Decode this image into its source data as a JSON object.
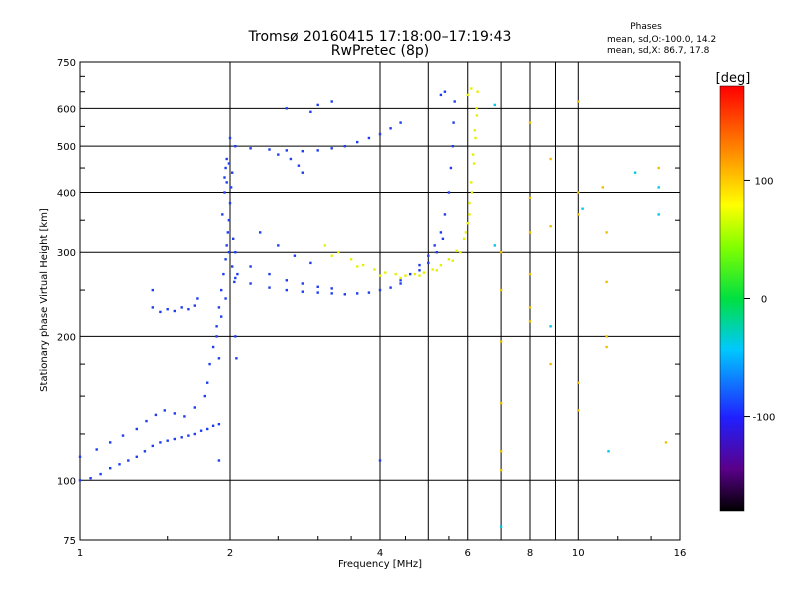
{
  "chart_data": {
    "type": "scatter",
    "title": "Tromsø 20160415 17:18:00–17:19:43",
    "subtitle": "RwPretec (8p)",
    "xlabel": "Frequency [MHz]",
    "ylabel": "Stationary phase Virtual Height [km]",
    "xscale": "log",
    "yscale": "log",
    "xlim": [
      1,
      16
    ],
    "ylim": [
      75,
      750
    ],
    "grid": true,
    "x_ticks": [
      1,
      2,
      4,
      6,
      8,
      10,
      16
    ],
    "x_tick_labels": [
      "1",
      "2",
      "4",
      "6",
      "8",
      "10",
      "16"
    ],
    "y_ticks": [
      75,
      100,
      200,
      300,
      400,
      500,
      600,
      750
    ],
    "y_tick_labels": [
      "75",
      "100",
      "200",
      "300",
      "400",
      "500",
      "600",
      "750"
    ],
    "stats": {
      "heading": "Phases",
      "line1": "mean, sd,O:-100.0, 14.2",
      "line2": "mean, sd,X:  86.7, 17.8"
    },
    "colorbar": {
      "label": "[deg]",
      "range": [
        -180,
        180
      ],
      "ticks": [
        100,
        0,
        -100
      ],
      "tick_labels": [
        "100",
        "0",
        "-100"
      ]
    },
    "series": [
      {
        "mode": "O",
        "phase_deg": -100,
        "color": "#1f3df0",
        "points": [
          [
            1.0,
            100
          ],
          [
            1.05,
            101
          ],
          [
            1.1,
            103
          ],
          [
            1.15,
            106
          ],
          [
            1.2,
            108
          ],
          [
            1.25,
            110
          ],
          [
            1.3,
            112
          ],
          [
            1.35,
            115
          ],
          [
            1.4,
            118
          ],
          [
            1.45,
            120
          ],
          [
            1.5,
            121
          ],
          [
            1.55,
            122
          ],
          [
            1.6,
            123
          ],
          [
            1.65,
            124
          ],
          [
            1.7,
            125
          ],
          [
            1.75,
            127
          ],
          [
            1.8,
            128
          ],
          [
            1.85,
            130
          ],
          [
            1.9,
            131
          ],
          [
            1.0,
            112
          ],
          [
            1.08,
            116
          ],
          [
            1.15,
            120
          ],
          [
            1.22,
            124
          ],
          [
            1.3,
            128
          ],
          [
            1.36,
            133
          ],
          [
            1.42,
            137
          ],
          [
            1.48,
            140
          ],
          [
            1.55,
            138
          ],
          [
            1.62,
            136
          ],
          [
            1.7,
            142
          ],
          [
            1.78,
            150
          ],
          [
            1.8,
            160
          ],
          [
            1.82,
            175
          ],
          [
            1.85,
            190
          ],
          [
            1.88,
            210
          ],
          [
            1.9,
            230
          ],
          [
            1.92,
            250
          ],
          [
            1.94,
            270
          ],
          [
            1.96,
            290
          ],
          [
            1.97,
            310
          ],
          [
            1.98,
            330
          ],
          [
            1.99,
            350
          ],
          [
            2.0,
            380
          ],
          [
            2.01,
            410
          ],
          [
            2.02,
            440
          ],
          [
            1.93,
            360
          ],
          [
            1.95,
            400
          ],
          [
            1.97,
            420
          ],
          [
            1.99,
            300
          ],
          [
            2.02,
            280
          ],
          [
            2.04,
            260
          ],
          [
            1.96,
            240
          ],
          [
            1.92,
            220
          ],
          [
            1.88,
            200
          ],
          [
            1.9,
            180
          ],
          [
            2.05,
            200
          ],
          [
            2.06,
            180
          ],
          [
            1.95,
            430
          ],
          [
            1.96,
            450
          ],
          [
            1.97,
            470
          ],
          [
            1.99,
            460
          ],
          [
            2.0,
            520
          ],
          [
            2.03,
            320
          ],
          [
            2.05,
            300
          ],
          [
            2.07,
            270
          ],
          [
            2.05,
            265
          ],
          [
            2.2,
            258
          ],
          [
            2.4,
            253
          ],
          [
            2.6,
            250
          ],
          [
            2.8,
            248
          ],
          [
            3.0,
            247
          ],
          [
            3.2,
            246
          ],
          [
            3.4,
            245
          ],
          [
            3.6,
            246
          ],
          [
            3.8,
            247
          ],
          [
            4.0,
            250
          ],
          [
            4.2,
            253
          ],
          [
            4.4,
            258
          ],
          [
            2.2,
            280
          ],
          [
            2.4,
            270
          ],
          [
            2.6,
            262
          ],
          [
            2.8,
            258
          ],
          [
            3.0,
            254
          ],
          [
            3.2,
            252
          ],
          [
            2.3,
            330
          ],
          [
            2.5,
            310
          ],
          [
            2.7,
            295
          ],
          [
            2.9,
            285
          ],
          [
            4.4,
            262
          ],
          [
            4.6,
            270
          ],
          [
            4.8,
            282
          ],
          [
            5.0,
            295
          ],
          [
            5.15,
            310
          ],
          [
            5.3,
            330
          ],
          [
            5.4,
            360
          ],
          [
            5.5,
            400
          ],
          [
            5.55,
            450
          ],
          [
            5.6,
            500
          ],
          [
            5.62,
            560
          ],
          [
            5.65,
            620
          ],
          [
            4.8,
            275
          ],
          [
            5.0,
            285
          ],
          [
            5.2,
            300
          ],
          [
            5.35,
            320
          ],
          [
            2.05,
            500
          ],
          [
            2.2,
            495
          ],
          [
            2.4,
            492
          ],
          [
            2.6,
            490
          ],
          [
            2.8,
            488
          ],
          [
            3.0,
            490
          ],
          [
            3.2,
            495
          ],
          [
            3.4,
            500
          ],
          [
            3.6,
            510
          ],
          [
            3.8,
            520
          ],
          [
            4.0,
            530
          ],
          [
            4.2,
            545
          ],
          [
            4.4,
            560
          ],
          [
            2.5,
            480
          ],
          [
            2.65,
            470
          ],
          [
            2.75,
            455
          ],
          [
            2.8,
            440
          ],
          [
            2.6,
            600
          ],
          [
            2.9,
            590
          ],
          [
            3.0,
            610
          ],
          [
            3.2,
            620
          ],
          [
            1.4,
            230
          ],
          [
            1.45,
            225
          ],
          [
            1.5,
            228
          ],
          [
            1.55,
            226
          ],
          [
            1.6,
            230
          ],
          [
            1.65,
            228
          ],
          [
            1.7,
            232
          ],
          [
            1.4,
            250
          ],
          [
            1.72,
            240
          ],
          [
            1.9,
            110
          ],
          [
            4.0,
            110
          ],
          [
            5.4,
            650
          ],
          [
            5.3,
            640
          ]
        ]
      },
      {
        "mode": "X",
        "phase_deg": 86.7,
        "color": "#e6f000",
        "points": [
          [
            3.1,
            310
          ],
          [
            3.3,
            300
          ],
          [
            3.5,
            290
          ],
          [
            3.7,
            282
          ],
          [
            3.9,
            276
          ],
          [
            4.1,
            272
          ],
          [
            4.3,
            270
          ],
          [
            4.5,
            268
          ],
          [
            4.7,
            270
          ],
          [
            4.9,
            272
          ],
          [
            5.1,
            276
          ],
          [
            5.3,
            282
          ],
          [
            5.5,
            290
          ],
          [
            5.7,
            302
          ],
          [
            5.9,
            320
          ],
          [
            6.0,
            345
          ],
          [
            6.05,
            380
          ],
          [
            6.1,
            420
          ],
          [
            6.15,
            480
          ],
          [
            6.2,
            540
          ],
          [
            6.25,
            600
          ],
          [
            6.28,
            650
          ],
          [
            3.2,
            295
          ],
          [
            3.6,
            280
          ],
          [
            4.0,
            268
          ],
          [
            4.4,
            265
          ],
          [
            4.8,
            268
          ],
          [
            5.2,
            275
          ],
          [
            5.6,
            288
          ],
          [
            5.8,
            300
          ],
          [
            5.95,
            330
          ],
          [
            6.05,
            360
          ],
          [
            6.12,
            400
          ],
          [
            6.18,
            460
          ],
          [
            6.22,
            520
          ],
          [
            6.26,
            580
          ],
          [
            6.0,
            640
          ],
          [
            6.1,
            660
          ]
        ]
      },
      {
        "mode": "scatter",
        "phase_deg": 100,
        "color": "#f0c000",
        "points": [
          [
            7.0,
            300
          ],
          [
            7.0,
            250
          ],
          [
            7.0,
            195
          ],
          [
            7.0,
            145
          ],
          [
            7.0,
            115
          ],
          [
            7.0,
            105
          ],
          [
            8.0,
            560
          ],
          [
            8.0,
            390
          ],
          [
            8.0,
            330
          ],
          [
            8.0,
            270
          ],
          [
            8.0,
            230
          ],
          [
            8.0,
            215
          ],
          [
            8.8,
            470
          ],
          [
            8.8,
            340
          ],
          [
            8.8,
            175
          ],
          [
            10.0,
            620
          ],
          [
            10.0,
            400
          ],
          [
            10.0,
            360
          ],
          [
            10.0,
            160
          ],
          [
            10.0,
            140
          ],
          [
            11.2,
            410
          ],
          [
            11.4,
            330
          ],
          [
            11.4,
            260
          ],
          [
            11.4,
            200
          ],
          [
            11.4,
            190
          ],
          [
            14.5,
            450
          ],
          [
            15.0,
            120
          ]
        ]
      },
      {
        "mode": "scatter",
        "phase_deg": -30,
        "color": "#00c8e8",
        "points": [
          [
            6.8,
            610
          ],
          [
            6.8,
            310
          ],
          [
            7.0,
            80
          ],
          [
            8.8,
            210
          ],
          [
            10.2,
            370
          ],
          [
            11.5,
            115
          ],
          [
            13.0,
            440
          ],
          [
            14.5,
            360
          ],
          [
            14.5,
            410
          ]
        ]
      }
    ]
  }
}
